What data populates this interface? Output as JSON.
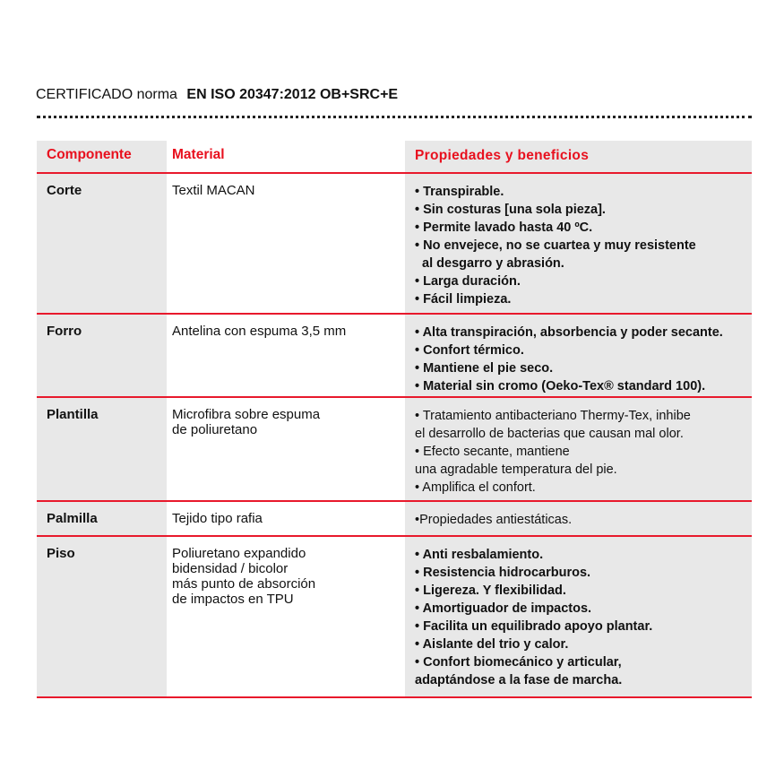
{
  "title": {
    "prefix": "CERTIFICADO norma",
    "standard": "EN ISO 20347:2012 OB+SRC+E"
  },
  "colors": {
    "accent": "#e8101e",
    "cell_gray": "#e8e8e8"
  },
  "table": {
    "headers": [
      "Componente",
      "Material",
      "Propiedades y beneficios"
    ],
    "rows": [
      {
        "component": "Corte",
        "material": [
          "Textil MACAN"
        ],
        "properties": [
          "• Transpirable.",
          "• Sin costuras [una sola pieza].",
          "• Permite lavado hasta 40 ºC.",
          "• No envejece, no se cuartea y muy resistente",
          "  al desgarro y abrasión.",
          "• Larga duración.",
          "• Fácil limpieza."
        ]
      },
      {
        "component": "Forro",
        "material": [
          "Antelina con espuma 3,5 mm"
        ],
        "properties": [
          "• Alta transpiración, absorbencia y poder secante.",
          "• Confort térmico.",
          "• Mantiene el pie seco.",
          "• Material sin cromo (Oeko-Tex® standard 100)."
        ]
      },
      {
        "component": "Plantilla",
        "material": [
          "Microfibra sobre espuma",
          "de poliuretano"
        ],
        "properties": [
          "• Tratamiento antibacteriano Thermy-Tex, inhibe",
          "el desarrollo de bacterias que causan mal olor.",
          "• Efecto secante, mantiene",
          "una agradable temperatura del pie.",
          "• Amplifica el confort."
        ]
      },
      {
        "component": "Palmilla",
        "material": [
          "Tejido tipo rafia"
        ],
        "properties": [
          "•Propiedades antiestáticas."
        ]
      },
      {
        "component": "Piso",
        "material": [
          "Poliuretano expandido",
          "bidensidad / bicolor",
          "más punto de absorción",
          "de impactos en TPU"
        ],
        "properties": [
          "• Anti resbalamiento.",
          "• Resistencia hidrocarburos.",
          "• Ligereza. Y flexibilidad.",
          "• Amortiguador de impactos.",
          "• Facilita un equilibrado apoyo plantar.",
          "• Aislante del trio y calor.",
          "• Confort biomecánico y articular,",
          "adaptándose a la fase de marcha."
        ]
      }
    ]
  }
}
